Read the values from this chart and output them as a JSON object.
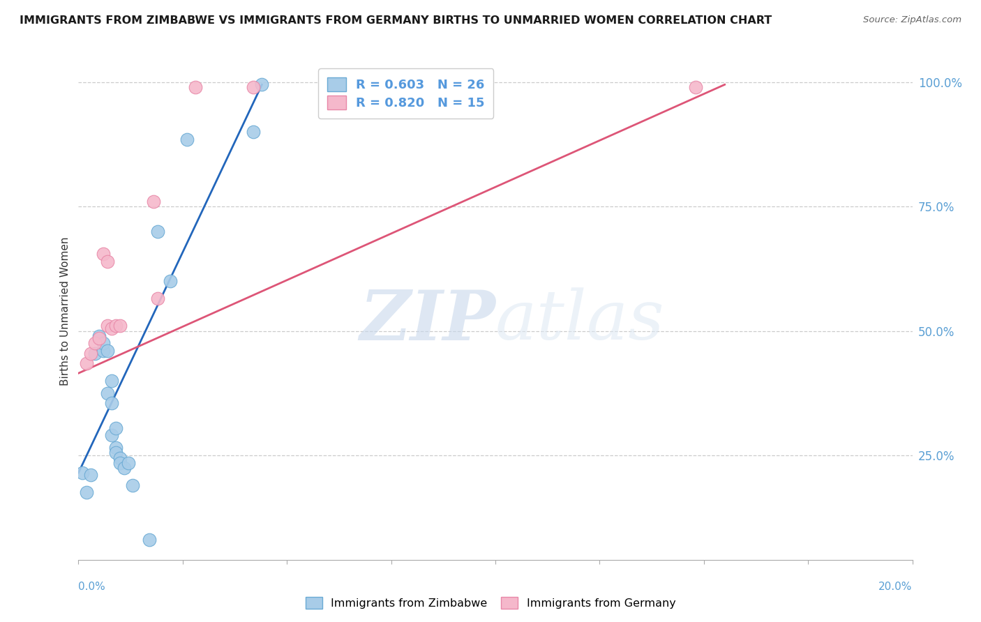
{
  "title": "IMMIGRANTS FROM ZIMBABWE VS IMMIGRANTS FROM GERMANY BIRTHS TO UNMARRIED WOMEN CORRELATION CHART",
  "source": "Source: ZipAtlas.com",
  "ylabel": "Births to Unmarried Women",
  "ytick_labels": [
    "25.0%",
    "50.0%",
    "75.0%",
    "100.0%"
  ],
  "ytick_values": [
    0.25,
    0.5,
    0.75,
    1.0
  ],
  "legend_blue": "R = 0.603   N = 26",
  "legend_pink": "R = 0.820   N = 15",
  "blue_label": "Immigrants from Zimbabwe",
  "pink_label": "Immigrants from Germany",
  "blue_color": "#a8cce8",
  "pink_color": "#f5b8cb",
  "blue_edge": "#6aaad4",
  "pink_edge": "#e888a8",
  "line_blue": "#2266bb",
  "line_pink": "#dd5577",
  "watermark_zip": "ZIP",
  "watermark_atlas": "atlas",
  "xmin": 0.0,
  "xmax": 0.2,
  "ymin": 0.04,
  "ymax": 1.04,
  "blue_x": [
    0.001,
    0.002,
    0.003,
    0.004,
    0.005,
    0.006,
    0.006,
    0.007,
    0.007,
    0.008,
    0.008,
    0.008,
    0.009,
    0.009,
    0.009,
    0.01,
    0.01,
    0.011,
    0.012,
    0.013,
    0.017,
    0.019,
    0.022,
    0.026,
    0.042,
    0.044
  ],
  "blue_y": [
    0.215,
    0.175,
    0.21,
    0.455,
    0.49,
    0.46,
    0.475,
    0.46,
    0.375,
    0.355,
    0.4,
    0.29,
    0.265,
    0.305,
    0.255,
    0.245,
    0.235,
    0.225,
    0.235,
    0.19,
    0.08,
    0.7,
    0.6,
    0.885,
    0.9,
    0.995
  ],
  "pink_x": [
    0.002,
    0.003,
    0.004,
    0.005,
    0.006,
    0.007,
    0.007,
    0.008,
    0.009,
    0.01,
    0.018,
    0.019,
    0.028,
    0.042,
    0.148
  ],
  "pink_y": [
    0.435,
    0.455,
    0.475,
    0.485,
    0.655,
    0.64,
    0.51,
    0.505,
    0.51,
    0.51,
    0.76,
    0.565,
    0.99,
    0.99,
    0.99
  ],
  "blue_trendline_x": [
    0.0,
    0.044
  ],
  "blue_trendline_y": [
    0.215,
    0.995
  ],
  "pink_trendline_x": [
    0.0,
    0.155
  ],
  "pink_trendline_y": [
    0.415,
    0.995
  ]
}
